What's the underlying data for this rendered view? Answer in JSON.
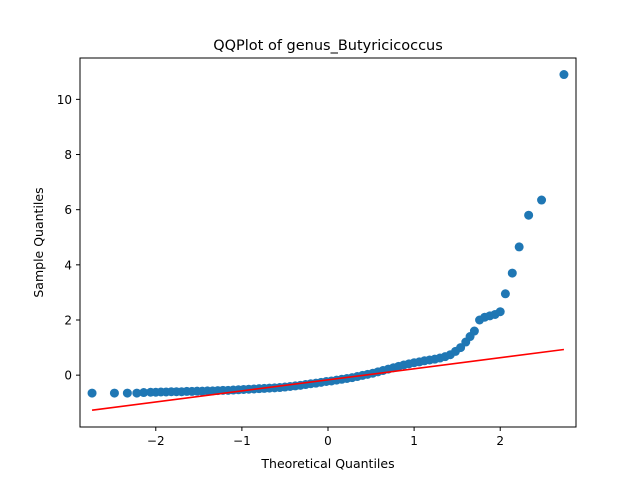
{
  "chart_data": {
    "type": "scatter",
    "title": "QQPlot of genus_Butyricicoccus",
    "xlabel": "Theoretical Quantiles",
    "ylabel": "Sample Quantiles",
    "xlim": [
      -2.88,
      2.88
    ],
    "ylim": [
      -1.88,
      11.5
    ],
    "xticks": [
      -2,
      -1,
      0,
      1,
      2
    ],
    "xtick_labels": [
      "−2",
      "−1",
      "0",
      "1",
      "2"
    ],
    "yticks": [
      0,
      2,
      4,
      6,
      8,
      10
    ],
    "yticks_labels_note": "",
    "ytick_labels": [
      "0",
      "2",
      "4",
      "6",
      "8",
      "10"
    ],
    "grid": false,
    "legend": "none",
    "point_color": "#1f77b4",
    "line_color": "#ff0000",
    "reference_line": {
      "x": [
        -2.74,
        2.74
      ],
      "y": [
        -1.27,
        0.93
      ]
    },
    "sample_points": {
      "x": [
        -2.74,
        -2.48,
        -2.33,
        -2.22,
        -2.14,
        -2.06,
        -2.0,
        -1.94,
        -1.88,
        -1.82,
        -1.76,
        -1.7,
        -1.64,
        -1.58,
        -1.52,
        -1.46,
        -1.4,
        -1.34,
        -1.28,
        -1.22,
        -1.16,
        -1.1,
        -1.04,
        -0.98,
        -0.92,
        -0.86,
        -0.8,
        -0.74,
        -0.68,
        -0.62,
        -0.56,
        -0.5,
        -0.44,
        -0.38,
        -0.32,
        -0.26,
        -0.2,
        -0.14,
        -0.08,
        -0.02,
        0.04,
        0.1,
        0.16,
        0.22,
        0.28,
        0.34,
        0.4,
        0.46,
        0.52,
        0.58,
        0.64,
        0.7,
        0.76,
        0.82,
        0.88,
        0.94,
        1.0,
        1.06,
        1.12,
        1.18,
        1.24,
        1.3,
        1.36,
        1.42,
        1.48,
        1.54,
        1.6,
        1.65,
        1.7,
        1.76,
        1.82,
        1.88,
        1.94,
        2.0,
        2.06,
        2.14,
        2.22,
        2.33,
        2.48,
        2.74
      ],
      "y": [
        -0.65,
        -0.65,
        -0.65,
        -0.65,
        -0.63,
        -0.62,
        -0.62,
        -0.61,
        -0.61,
        -0.6,
        -0.6,
        -0.6,
        -0.59,
        -0.59,
        -0.58,
        -0.58,
        -0.57,
        -0.57,
        -0.56,
        -0.55,
        -0.55,
        -0.54,
        -0.53,
        -0.52,
        -0.51,
        -0.5,
        -0.49,
        -0.48,
        -0.47,
        -0.46,
        -0.45,
        -0.43,
        -0.41,
        -0.39,
        -0.37,
        -0.34,
        -0.31,
        -0.29,
        -0.26,
        -0.23,
        -0.21,
        -0.18,
        -0.15,
        -0.12,
        -0.09,
        -0.05,
        -0.01,
        0.03,
        0.07,
        0.12,
        0.17,
        0.22,
        0.27,
        0.32,
        0.37,
        0.41,
        0.45,
        0.48,
        0.52,
        0.55,
        0.58,
        0.62,
        0.67,
        0.74,
        0.86,
        1.0,
        1.2,
        1.4,
        1.6,
        2.0,
        2.1,
        2.15,
        2.2,
        2.3,
        2.95,
        3.7,
        4.65,
        5.8,
        6.35,
        10.9
      ]
    }
  }
}
